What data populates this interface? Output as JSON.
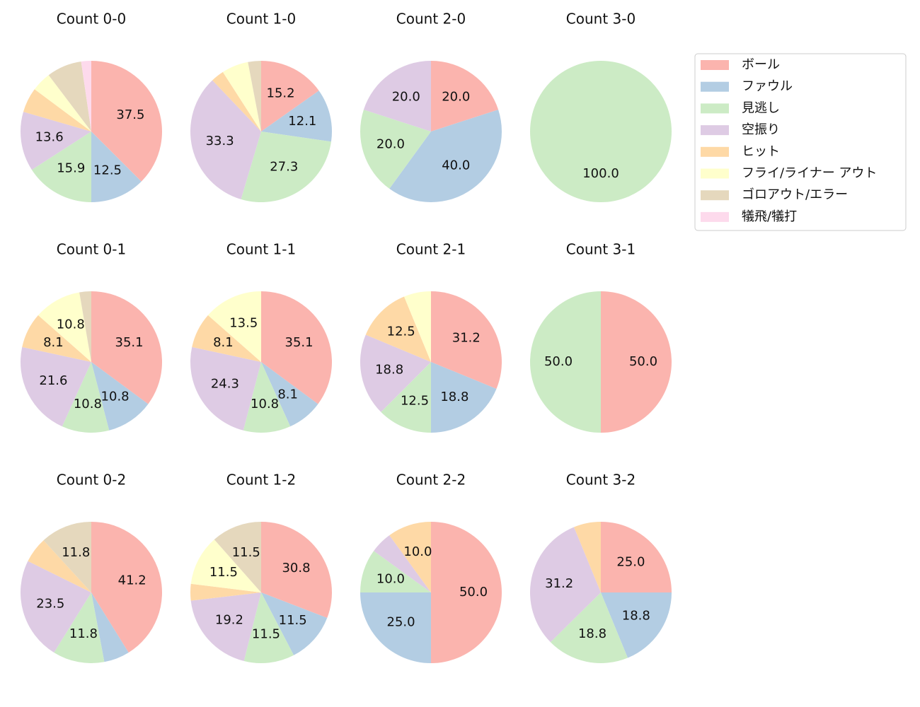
{
  "chart_data": [
    {
      "type": "pie",
      "title": "Count 0-0",
      "categories": [
        "ボール",
        "ファウル",
        "見逃し",
        "空振り",
        "ヒット",
        "フライ/ライナー アウト",
        "ゴロアウト/エラー",
        "犠飛/犠打"
      ],
      "colors": [
        "#fbb4ae",
        "#b3cde3",
        "#ccebc5",
        "#decbe4",
        "#fed9a6",
        "#ffffcc",
        "#e5d8bd",
        "#fddaec"
      ],
      "values": [
        37.5,
        12.5,
        15.9,
        13.6,
        5.7,
        4.5,
        8.0,
        2.3
      ],
      "value_labels": [
        "37.5",
        "12.5",
        "15.9",
        "13.6",
        null,
        null,
        null,
        null
      ]
    },
    {
      "type": "pie",
      "title": "Count 1-0",
      "categories": [
        "ボール",
        "ファウル",
        "見逃し",
        "空振り",
        "ヒット",
        "フライ/ライナー アウト",
        "ゴロアウト/エラー",
        "犠飛/犠打"
      ],
      "colors": [
        "#fbb4ae",
        "#b3cde3",
        "#ccebc5",
        "#decbe4",
        "#fed9a6",
        "#ffffcc",
        "#e5d8bd",
        "#fddaec"
      ],
      "values": [
        15.2,
        12.1,
        27.3,
        33.3,
        3.0,
        6.1,
        3.0,
        0
      ],
      "value_labels": [
        "15.2",
        "12.1",
        "27.3",
        "33.3",
        null,
        null,
        null,
        null
      ]
    },
    {
      "type": "pie",
      "title": "Count 2-0",
      "categories": [
        "ボール",
        "ファウル",
        "見逃し",
        "空振り",
        "ヒット",
        "フライ/ライナー アウト",
        "ゴロアウト/エラー",
        "犠飛/犠打"
      ],
      "colors": [
        "#fbb4ae",
        "#b3cde3",
        "#ccebc5",
        "#decbe4",
        "#fed9a6",
        "#ffffcc",
        "#e5d8bd",
        "#fddaec"
      ],
      "values": [
        20,
        40,
        20,
        20,
        0,
        0,
        0,
        0
      ],
      "value_labels": [
        "20.0",
        "40.0",
        "20.0",
        "20.0",
        null,
        null,
        null,
        null
      ]
    },
    {
      "type": "pie",
      "title": "Count 3-0",
      "categories": [
        "ボール",
        "ファウル",
        "見逃し",
        "空振り",
        "ヒット",
        "フライ/ライナー アウト",
        "ゴロアウト/エラー",
        "犠飛/犠打"
      ],
      "colors": [
        "#fbb4ae",
        "#b3cde3",
        "#ccebc5",
        "#decbe4",
        "#fed9a6",
        "#ffffcc",
        "#e5d8bd",
        "#fddaec"
      ],
      "values": [
        0,
        0,
        100,
        0,
        0,
        0,
        0,
        0
      ],
      "value_labels": [
        null,
        null,
        "100.0",
        null,
        null,
        null,
        null,
        null
      ]
    },
    {
      "type": "pie",
      "title": "Count 0-1",
      "categories": [
        "ボール",
        "ファウル",
        "見逃し",
        "空振り",
        "ヒット",
        "フライ/ライナー アウト",
        "ゴロアウト/エラー",
        "犠飛/犠打"
      ],
      "colors": [
        "#fbb4ae",
        "#b3cde3",
        "#ccebc5",
        "#decbe4",
        "#fed9a6",
        "#ffffcc",
        "#e5d8bd",
        "#fddaec"
      ],
      "values": [
        35.1,
        10.8,
        10.8,
        21.6,
        8.1,
        10.8,
        2.7,
        0
      ],
      "value_labels": [
        "35.1",
        "10.8",
        "10.8",
        "21.6",
        "8.1",
        "10.8",
        null,
        null
      ]
    },
    {
      "type": "pie",
      "title": "Count 1-1",
      "categories": [
        "ボール",
        "ファウル",
        "見逃し",
        "空振り",
        "ヒット",
        "フライ/ライナー アウト",
        "ゴロアウト/エラー",
        "犠飛/犠打"
      ],
      "colors": [
        "#fbb4ae",
        "#b3cde3",
        "#ccebc5",
        "#decbe4",
        "#fed9a6",
        "#ffffcc",
        "#e5d8bd",
        "#fddaec"
      ],
      "values": [
        35.1,
        8.1,
        10.8,
        24.3,
        8.1,
        13.5,
        0,
        0
      ],
      "value_labels": [
        "35.1",
        "8.1",
        "10.8",
        "24.3",
        "8.1",
        "13.5",
        null,
        null
      ]
    },
    {
      "type": "pie",
      "title": "Count 2-1",
      "categories": [
        "ボール",
        "ファウル",
        "見逃し",
        "空振り",
        "ヒット",
        "フライ/ライナー アウト",
        "ゴロアウト/エラー",
        "犠飛/犠打"
      ],
      "colors": [
        "#fbb4ae",
        "#b3cde3",
        "#ccebc5",
        "#decbe4",
        "#fed9a6",
        "#ffffcc",
        "#e5d8bd",
        "#fddaec"
      ],
      "values": [
        31.2,
        18.8,
        12.5,
        18.8,
        12.5,
        6.2,
        0,
        0
      ],
      "value_labels": [
        "31.2",
        "18.8",
        "12.5",
        "18.8",
        "12.5",
        null,
        null,
        null
      ]
    },
    {
      "type": "pie",
      "title": "Count 3-1",
      "categories": [
        "ボール",
        "ファウル",
        "見逃し",
        "空振り",
        "ヒット",
        "フライ/ライナー アウト",
        "ゴロアウト/エラー",
        "犠飛/犠打"
      ],
      "colors": [
        "#fbb4ae",
        "#b3cde3",
        "#ccebc5",
        "#decbe4",
        "#fed9a6",
        "#ffffcc",
        "#e5d8bd",
        "#fddaec"
      ],
      "values": [
        50,
        0,
        50,
        0,
        0,
        0,
        0,
        0
      ],
      "value_labels": [
        "50.0",
        null,
        "50.0",
        null,
        null,
        null,
        null,
        null
      ]
    },
    {
      "type": "pie",
      "title": "Count 0-2",
      "categories": [
        "ボール",
        "ファウル",
        "見逃し",
        "空振り",
        "ヒット",
        "フライ/ライナー アウト",
        "ゴロアウト/エラー",
        "犠飛/犠打"
      ],
      "colors": [
        "#fbb4ae",
        "#b3cde3",
        "#ccebc5",
        "#decbe4",
        "#fed9a6",
        "#ffffcc",
        "#e5d8bd",
        "#fddaec"
      ],
      "values": [
        41.2,
        5.9,
        11.8,
        23.5,
        5.9,
        0,
        11.8,
        0
      ],
      "value_labels": [
        "41.2",
        null,
        "11.8",
        "23.5",
        null,
        null,
        "11.8",
        null
      ]
    },
    {
      "type": "pie",
      "title": "Count 1-2",
      "categories": [
        "ボール",
        "ファウル",
        "見逃し",
        "空振り",
        "ヒット",
        "フライ/ライナー アウト",
        "ゴロアウト/エラー",
        "犠飛/犠打"
      ],
      "colors": [
        "#fbb4ae",
        "#b3cde3",
        "#ccebc5",
        "#decbe4",
        "#fed9a6",
        "#ffffcc",
        "#e5d8bd",
        "#fddaec"
      ],
      "values": [
        30.8,
        11.5,
        11.5,
        19.2,
        3.8,
        11.5,
        11.5,
        0
      ],
      "value_labels": [
        "30.8",
        "11.5",
        "11.5",
        "19.2",
        null,
        "11.5",
        "11.5",
        null
      ]
    },
    {
      "type": "pie",
      "title": "Count 2-2",
      "categories": [
        "ボール",
        "ファウル",
        "見逃し",
        "空振り",
        "ヒット",
        "フライ/ライナー アウト",
        "ゴロアウト/エラー",
        "犠飛/犠打"
      ],
      "colors": [
        "#fbb4ae",
        "#b3cde3",
        "#ccebc5",
        "#decbe4",
        "#fed9a6",
        "#ffffcc",
        "#e5d8bd",
        "#fddaec"
      ],
      "values": [
        50,
        25,
        10,
        5,
        10,
        0,
        0,
        0
      ],
      "value_labels": [
        "50.0",
        "25.0",
        "10.0",
        null,
        "10.0",
        null,
        null,
        null
      ]
    },
    {
      "type": "pie",
      "title": "Count 3-2",
      "categories": [
        "ボール",
        "ファウル",
        "見逃し",
        "空振り",
        "ヒット",
        "フライ/ライナー アウト",
        "ゴロアウト/エラー",
        "犠飛/犠打"
      ],
      "colors": [
        "#fbb4ae",
        "#b3cde3",
        "#ccebc5",
        "#decbe4",
        "#fed9a6",
        "#ffffcc",
        "#e5d8bd",
        "#fddaec"
      ],
      "values": [
        25,
        18.8,
        18.8,
        31.2,
        6.2,
        0,
        0,
        0
      ],
      "value_labels": [
        "25.0",
        "18.8",
        "18.8",
        "31.2",
        null,
        null,
        null,
        null
      ]
    }
  ]
}
